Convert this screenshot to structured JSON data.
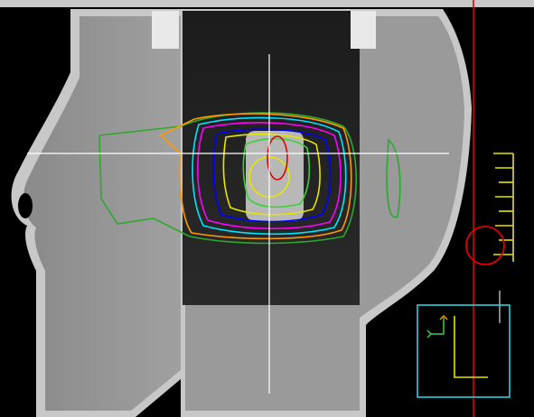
{
  "viewer": {
    "status_text": "",
    "colors": {
      "background": "#000000",
      "crosshair": "#ffffff",
      "reference_line": "#e00000",
      "orientation_box": "#28d0e0",
      "orientation_marker": "#e6e600",
      "ruler": "#e6e600",
      "isocenter_circle": "#e00000"
    }
  },
  "contour_colors": [
    "#e6e600",
    "#ff9900",
    "#3ad13a",
    "#0000ff",
    "#ff00ff",
    "#00e5ff",
    "#2ea82e",
    "#e00000"
  ],
  "icons": [
    "orientation-cube-icon",
    "ruler-scale-icon",
    "isocenter-marker-icon",
    "crosshair-icon"
  ]
}
